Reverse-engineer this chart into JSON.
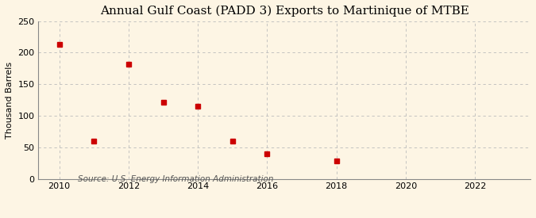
{
  "title": "Annual Gulf Coast (PADD 3) Exports to Martinique of MTBE",
  "ylabel": "Thousand Barrels",
  "source": "Source: U.S. Energy Information Administration",
  "xlim": [
    2009.4,
    2023.6
  ],
  "ylim": [
    0,
    250
  ],
  "yticks": [
    0,
    50,
    100,
    150,
    200,
    250
  ],
  "xticks": [
    2010,
    2012,
    2014,
    2016,
    2018,
    2020,
    2022
  ],
  "data_x": [
    2010,
    2011,
    2012,
    2013,
    2014,
    2015,
    2016,
    2018
  ],
  "data_y": [
    213,
    60,
    182,
    121,
    115,
    60,
    39,
    28
  ],
  "marker_color": "#cc0000",
  "marker": "s",
  "marker_size": 4,
  "background_color": "#fdf5e4",
  "grid_color": "#bbbbbb",
  "title_fontsize": 11,
  "label_fontsize": 8,
  "tick_fontsize": 8,
  "source_fontsize": 7.5
}
